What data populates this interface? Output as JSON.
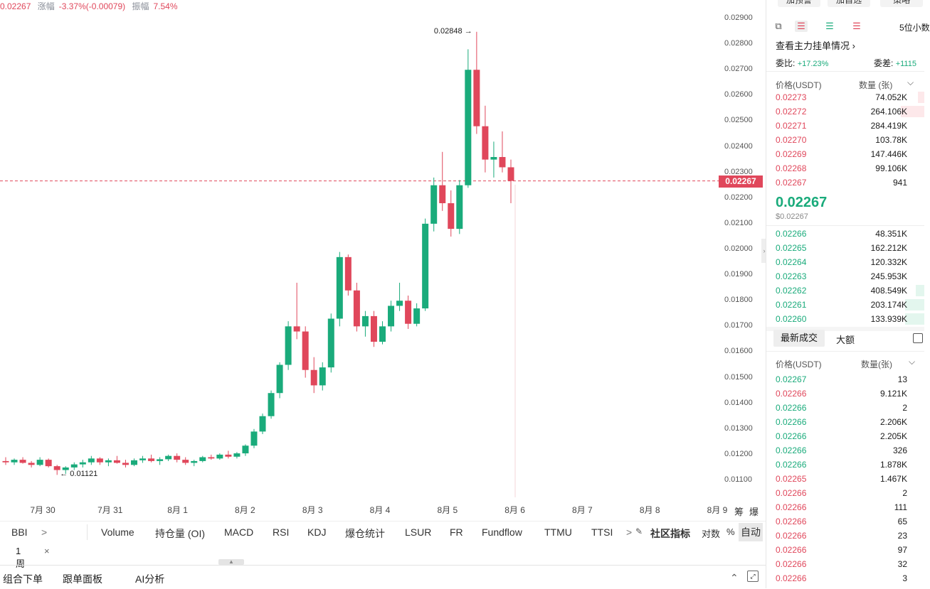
{
  "header": {
    "last_price": "0.02267",
    "change_label": "涨幅",
    "change_value": "-3.37%(-0.00079)",
    "amplitude_label": "振幅",
    "amplitude_value": "7.54%"
  },
  "chart_data": {
    "type": "candlestick",
    "y_ticks": [
      "0.02900",
      "0.02800",
      "0.02700",
      "0.02600",
      "0.02500",
      "0.02400",
      "0.02300",
      "0.02200",
      "0.02100",
      "0.02000",
      "0.01900",
      "0.01800",
      "0.01700",
      "0.01600",
      "0.01500",
      "0.01400",
      "0.01300",
      "0.01200",
      "0.01100"
    ],
    "ylim": [
      0.0106,
      0.0292
    ],
    "x_labels": [
      "7月 30",
      "7月 31",
      "8月 1",
      "8月 2",
      "8月 3",
      "8月 4",
      "8月 5",
      "8月 6",
      "8月 7",
      "8月 8",
      "8月 9"
    ],
    "current_price": 0.02267,
    "current_price_label": "0.02267",
    "high_marker": {
      "label": "0.02848",
      "value": 0.02848
    },
    "low_marker": {
      "label": "0.01121",
      "value": 0.01121
    },
    "candles": [
      [
        0.01175,
        0.0119,
        0.0116,
        0.0117
      ],
      [
        0.0117,
        0.01185,
        0.0116,
        0.0118
      ],
      [
        0.0118,
        0.0119,
        0.01165,
        0.01168
      ],
      [
        0.01168,
        0.01175,
        0.0115,
        0.0116
      ],
      [
        0.0116,
        0.0119,
        0.01155,
        0.0118
      ],
      [
        0.0118,
        0.01185,
        0.0115,
        0.01155
      ],
      [
        0.01155,
        0.0116,
        0.01121,
        0.0114
      ],
      [
        0.0114,
        0.01155,
        0.01125,
        0.0115
      ],
      [
        0.0115,
        0.0117,
        0.0114,
        0.01162
      ],
      [
        0.01162,
        0.0118,
        0.0115,
        0.0117
      ],
      [
        0.0117,
        0.01195,
        0.0116,
        0.01185
      ],
      [
        0.01185,
        0.0119,
        0.0116,
        0.0117
      ],
      [
        0.0117,
        0.01185,
        0.01155,
        0.01178
      ],
      [
        0.01178,
        0.01195,
        0.01165,
        0.01168
      ],
      [
        0.01168,
        0.0118,
        0.0115,
        0.0116
      ],
      [
        0.0116,
        0.01185,
        0.01155,
        0.01178
      ],
      [
        0.01178,
        0.01195,
        0.01168,
        0.01185
      ],
      [
        0.01185,
        0.012,
        0.0117,
        0.01175
      ],
      [
        0.01175,
        0.0119,
        0.0116,
        0.01182
      ],
      [
        0.01182,
        0.012,
        0.01175,
        0.01195
      ],
      [
        0.01195,
        0.01205,
        0.0117,
        0.0118
      ],
      [
        0.0118,
        0.0119,
        0.0116,
        0.01168
      ],
      [
        0.01168,
        0.0118,
        0.01155,
        0.01175
      ],
      [
        0.01175,
        0.01195,
        0.0117,
        0.0119
      ],
      [
        0.0119,
        0.012,
        0.0118,
        0.01185
      ],
      [
        0.01185,
        0.01205,
        0.0118,
        0.012
      ],
      [
        0.012,
        0.01215,
        0.01185,
        0.01192
      ],
      [
        0.01192,
        0.0121,
        0.01185,
        0.01205
      ],
      [
        0.01205,
        0.0124,
        0.01195,
        0.01235
      ],
      [
        0.01235,
        0.013,
        0.01225,
        0.0129
      ],
      [
        0.0129,
        0.0136,
        0.0128,
        0.0135
      ],
      [
        0.0135,
        0.0145,
        0.0134,
        0.0144
      ],
      [
        0.0144,
        0.0156,
        0.0142,
        0.0155
      ],
      [
        0.0155,
        0.0172,
        0.0153,
        0.017
      ],
      [
        0.017,
        0.0187,
        0.0165,
        0.0168
      ],
      [
        0.0168,
        0.017,
        0.015,
        0.0153
      ],
      [
        0.0153,
        0.0158,
        0.0144,
        0.0147
      ],
      [
        0.0147,
        0.0156,
        0.0145,
        0.0154
      ],
      [
        0.0154,
        0.0175,
        0.0152,
        0.0173
      ],
      [
        0.0173,
        0.0199,
        0.017,
        0.0197
      ],
      [
        0.0197,
        0.0198,
        0.0182,
        0.0184
      ],
      [
        0.0184,
        0.0187,
        0.0168,
        0.017
      ],
      [
        0.017,
        0.0176,
        0.0166,
        0.0174
      ],
      [
        0.0174,
        0.0176,
        0.0162,
        0.0164
      ],
      [
        0.0164,
        0.0172,
        0.0163,
        0.017
      ],
      [
        0.017,
        0.018,
        0.0168,
        0.0178
      ],
      [
        0.0178,
        0.0187,
        0.0176,
        0.018
      ],
      [
        0.018,
        0.0182,
        0.0169,
        0.0171
      ],
      [
        0.0171,
        0.0179,
        0.017,
        0.0177
      ],
      [
        0.0177,
        0.0212,
        0.0176,
        0.021
      ],
      [
        0.021,
        0.0228,
        0.0207,
        0.0225
      ],
      [
        0.0225,
        0.0238,
        0.0215,
        0.0218
      ],
      [
        0.0218,
        0.0223,
        0.0205,
        0.0208
      ],
      [
        0.0208,
        0.0227,
        0.0206,
        0.0225
      ],
      [
        0.0225,
        0.0278,
        0.0224,
        0.027
      ],
      [
        0.027,
        0.02848,
        0.0245,
        0.0248
      ],
      [
        0.0248,
        0.0256,
        0.023,
        0.0235
      ],
      [
        0.0235,
        0.0242,
        0.0228,
        0.0236
      ],
      [
        0.0236,
        0.0246,
        0.023,
        0.0232
      ],
      [
        0.0232,
        0.0235,
        0.0218,
        0.02267
      ]
    ]
  },
  "axis_tools": [
    "筹",
    "爆"
  ],
  "indicator_tabs": {
    "bbi": "BBI",
    "bbi_arrow": ">",
    "items": [
      "Volume",
      "持仓量 (OI)",
      "MACD",
      "RSI",
      "KDJ",
      "爆仓统计",
      "LSUR",
      "FR",
      "Fundflow",
      "TTMU",
      "TTSI"
    ],
    "more_arrow": ">",
    "community": "社区指标",
    "log": "对数",
    "percent": "%",
    "auto": "自动"
  },
  "period": {
    "label": "1周",
    "close": "×"
  },
  "bottom_tabs": [
    "组合下单",
    "跟单面板",
    "AI分析"
  ],
  "right_panel": {
    "top_buttons": [
      "加预警",
      "加自选",
      "策略"
    ],
    "precision": "5位小数",
    "depth_link": "查看主力挂单情况",
    "ratio_label": "委比:",
    "ratio_value": "+17.23%",
    "diff_label": "委差:",
    "diff_value": "+1115",
    "col_price": "价格(USDT)",
    "col_qty": "数量 (张)",
    "asks": [
      {
        "price": "0.02273",
        "qty": "74.052K",
        "depth": 0.15
      },
      {
        "price": "0.02272",
        "qty": "264.106K",
        "depth": 0.55
      },
      {
        "price": "0.02271",
        "qty": "284.419K",
        "depth": 0.0
      },
      {
        "price": "0.02270",
        "qty": "103.78K",
        "depth": 0.0
      },
      {
        "price": "0.02269",
        "qty": "147.446K",
        "depth": 0.0
      },
      {
        "price": "0.02268",
        "qty": "99.106K",
        "depth": 0.0
      },
      {
        "price": "0.02267",
        "qty": "941",
        "depth": 0.0
      }
    ],
    "last_price": "0.02267",
    "last_price_usd": "$0.02267",
    "bids": [
      {
        "price": "0.02266",
        "qty": "48.351K",
        "depth": 0.0
      },
      {
        "price": "0.02265",
        "qty": "162.212K",
        "depth": 0.0
      },
      {
        "price": "0.02264",
        "qty": "120.332K",
        "depth": 0.0
      },
      {
        "price": "0.02263",
        "qty": "245.953K",
        "depth": 0.0
      },
      {
        "price": "0.02262",
        "qty": "408.549K",
        "depth": 0.2
      },
      {
        "price": "0.02261",
        "qty": "203.174K",
        "depth": 0.45
      },
      {
        "price": "0.02260",
        "qty": "133.939K",
        "depth": 0.45
      }
    ],
    "trades_tab_latest": "最新成交",
    "trades_tab_large": "大额",
    "trades_col_price": "价格(USDT)",
    "trades_col_qty": "数量(张)",
    "trades": [
      {
        "price": "0.02267",
        "qty": "13",
        "side": "buy"
      },
      {
        "price": "0.02266",
        "qty": "9.121K",
        "side": "sell"
      },
      {
        "price": "0.02266",
        "qty": "2",
        "side": "buy"
      },
      {
        "price": "0.02266",
        "qty": "2.206K",
        "side": "buy"
      },
      {
        "price": "0.02266",
        "qty": "2.205K",
        "side": "buy"
      },
      {
        "price": "0.02266",
        "qty": "326",
        "side": "buy"
      },
      {
        "price": "0.02266",
        "qty": "1.878K",
        "side": "buy"
      },
      {
        "price": "0.02265",
        "qty": "1.467K",
        "side": "sell"
      },
      {
        "price": "0.02266",
        "qty": "2",
        "side": "sell"
      },
      {
        "price": "0.02266",
        "qty": "111",
        "side": "sell"
      },
      {
        "price": "0.02266",
        "qty": "65",
        "side": "sell"
      },
      {
        "price": "0.02266",
        "qty": "23",
        "side": "sell"
      },
      {
        "price": "0.02266",
        "qty": "97",
        "side": "sell"
      },
      {
        "price": "0.02266",
        "qty": "32",
        "side": "sell"
      },
      {
        "price": "0.02266",
        "qty": "3",
        "side": "sell"
      }
    ]
  },
  "colors": {
    "up": "#1aab7b",
    "down": "#e0475b",
    "ask_bg": "#fde8ea",
    "bid_bg": "#e3f6ee"
  }
}
